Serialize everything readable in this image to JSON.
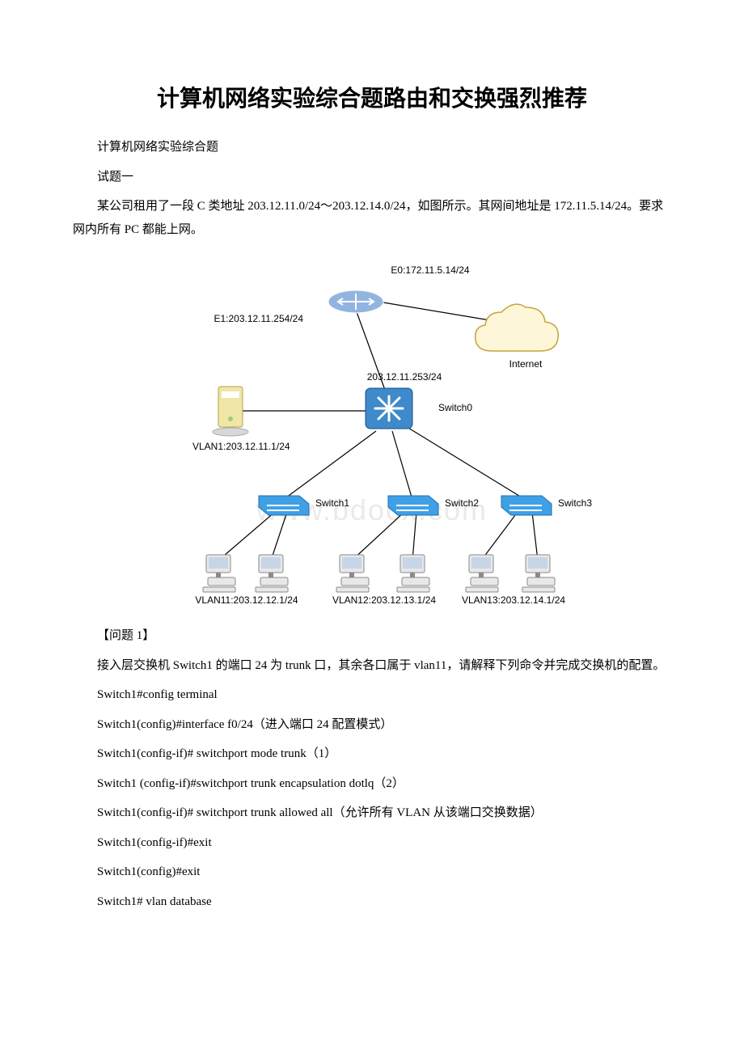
{
  "title": "计算机网络实验综合题路由和交换强烈推荐",
  "p_sub": "计算机网络实验综合题",
  "p_q": "试题一",
  "p_desc": "某公司租用了一段 C 类地址 203.12.11.0/24～203.12.14.0/24，如图所示。其网间地址是 172.11.5.14/24。要求网内所有 PC 都能上网。",
  "q1_head": "【问题 1】",
  "q1_desc": "接入层交换机 Switch1 的端口 24 为 trunk 口，其余各口属于 vlan11，请解释下列命令并完成交换机的配置。",
  "cmd1": "Switch1#config terminal",
  "cmd2": "Switch1(config)#interface f0/24（进入端口 24 配置模式）",
  "cmd3": "Switch1(config-if)# switchport mode trunk（1）",
  "cmd4": "Switch1 (config-if)#switchport trunk encapsulation dotlq（2）",
  "cmd5": "Switch1(config-if)# switchport trunk allowed all（允许所有 VLAN 从该端口交换数据）",
  "cmd6": "Switch1(config-if)#exit",
  "cmd7": "Switch1(config)#exit",
  "cmd8": "Switch1# vlan database",
  "diagram": {
    "labels": {
      "e0": "E0:172.11.5.14/24",
      "e1": "E1:203.12.11.254/24",
      "internet": "Internet",
      "sw0ip": "203.12.11.253/24",
      "sw0": "Switch0",
      "vlan1": "VLAN1:203.12.11.1/24",
      "sw1": "Switch1",
      "sw2": "Switch2",
      "sw3": "Switch3",
      "vlan11": "VLAN11:203.12.12.1/24",
      "vlan12": "VLAN12:203.12.13.1/24",
      "vlan13": "VLAN13:203.12.14.1/24"
    },
    "colors": {
      "line": "#000000",
      "cloud_fill": "#fef6d8",
      "cloud_stroke": "#c6a43a",
      "router_body": "#91b5e0",
      "router_stroke": "#2f5d9b",
      "l3sw_body": "#3e8acb",
      "l3sw_stroke": "#1c4f86",
      "arrow": "#ffffff",
      "server_body": "#efe6a7",
      "server_stroke": "#b7a04a",
      "switch_body": "#3fa0e6",
      "switch_stroke": "#1e6fb0",
      "pc_body": "#e8e8e8",
      "pc_stroke": "#8a8a8a",
      "pc_screen": "#c7d6e6"
    },
    "watermark": "www.bdocx.com"
  }
}
